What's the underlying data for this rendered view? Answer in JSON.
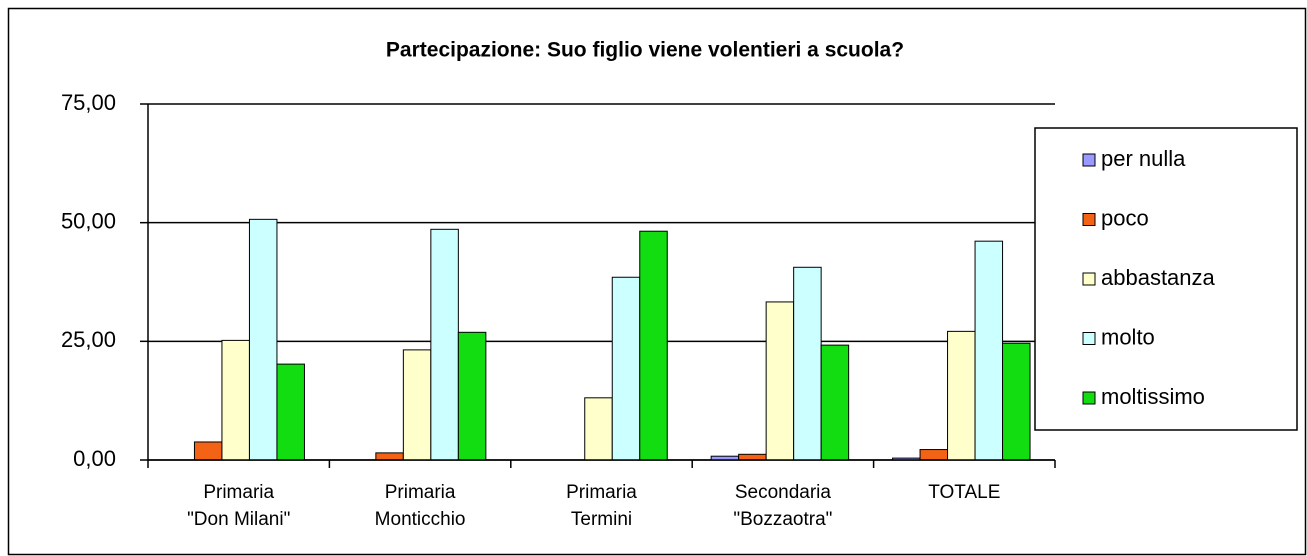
{
  "chart_data": {
    "type": "bar",
    "title": "Partecipazione: Suo figlio viene volentieri a scuola?",
    "categories": [
      [
        "Primaria",
        "\"Don Milani\""
      ],
      [
        "Primaria",
        "Monticchio"
      ],
      [
        "Primaria",
        "Termini"
      ],
      [
        "Secondaria",
        "\"Bozzaotra\""
      ],
      [
        "TOTALE"
      ]
    ],
    "series": [
      {
        "name": "per nulla",
        "color": "#9999ff",
        "values": [
          0,
          0,
          0,
          0.8,
          0.4
        ]
      },
      {
        "name": "poco",
        "color": "#f26316",
        "values": [
          3.8,
          1.5,
          0,
          1.2,
          2.2
        ]
      },
      {
        "name": "abbastanza",
        "color": "#ffffcc",
        "values": [
          25.2,
          23.2,
          13.1,
          33.3,
          27.1
        ]
      },
      {
        "name": "molto",
        "color": "#ccffff",
        "values": [
          50.7,
          48.6,
          38.5,
          40.6,
          46.1
        ]
      },
      {
        "name": "moltissimo",
        "color": "#11dd11",
        "values": [
          20.2,
          26.9,
          48.2,
          24.2,
          24.6
        ]
      }
    ],
    "ylim": [
      0,
      75
    ],
    "yticks": [
      {
        "value": 0,
        "label": "0,00"
      },
      {
        "value": 25,
        "label": "25,00"
      },
      {
        "value": 50,
        "label": "50,00"
      },
      {
        "value": 75,
        "label": "75,00"
      }
    ],
    "grid": true,
    "legend": "right"
  }
}
